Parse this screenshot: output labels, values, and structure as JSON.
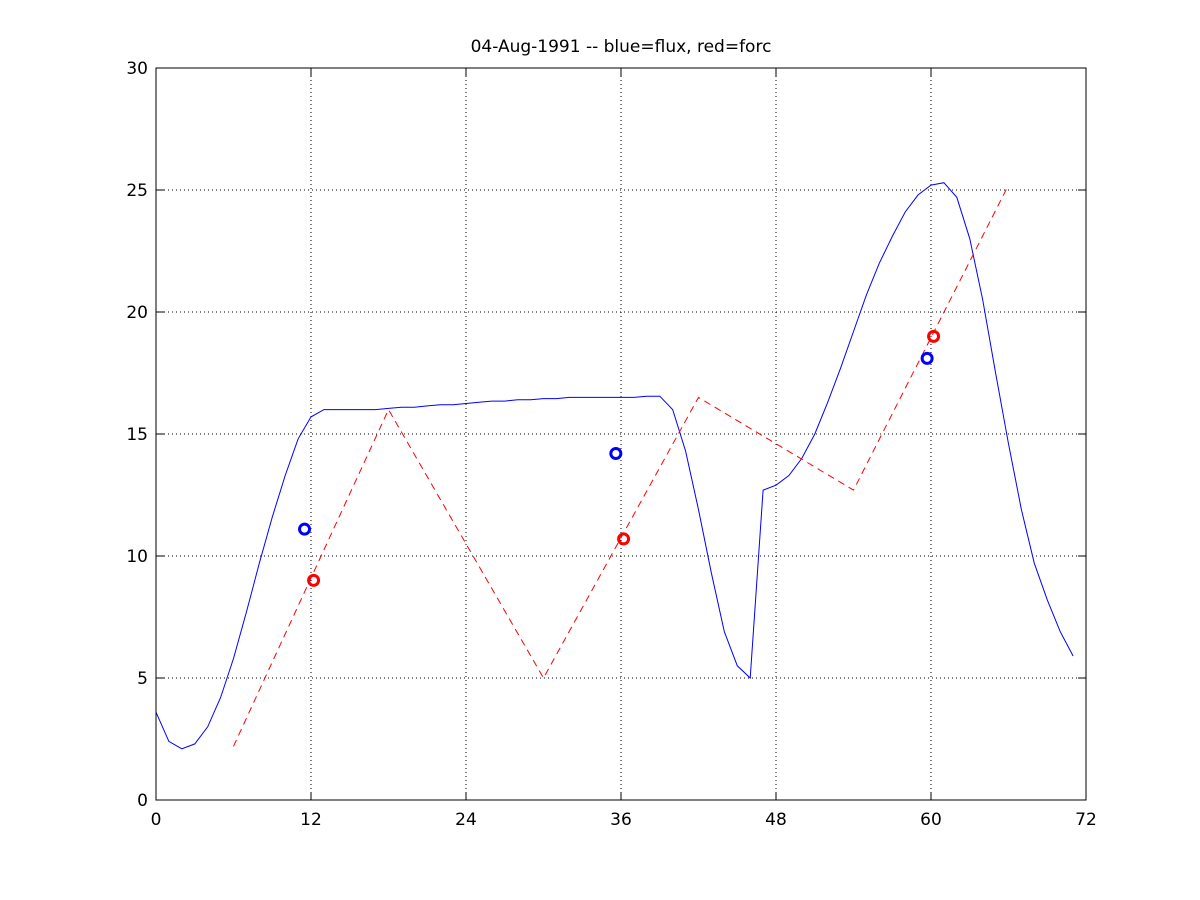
{
  "chart_data": {
    "type": "line",
    "title": "04-Aug-1991 -- blue=flux, red=forc",
    "xlabel": "",
    "ylabel": "",
    "xlim": [
      0,
      72
    ],
    "ylim": [
      0,
      30
    ],
    "xticks": [
      0,
      12,
      24,
      36,
      48,
      60,
      72
    ],
    "yticks": [
      0,
      5,
      10,
      15,
      20,
      25,
      30
    ],
    "xtick_labels": [
      "0",
      "12",
      "24",
      "36",
      "48",
      "60",
      "72"
    ],
    "ytick_labels": [
      "0",
      "5",
      "10",
      "15",
      "20",
      "25",
      "30"
    ],
    "grid": true,
    "series": [
      {
        "color": "#0000ff",
        "style": "solid",
        "x": [
          0,
          1,
          2,
          3,
          4,
          5,
          6,
          7,
          8,
          9,
          10,
          11,
          12,
          13,
          14,
          15,
          16,
          17,
          18,
          19,
          20,
          21,
          22,
          23,
          24,
          25,
          26,
          27,
          28,
          29,
          30,
          31,
          32,
          33,
          34,
          35,
          36,
          37,
          38,
          39,
          40,
          41,
          42,
          43,
          44,
          45,
          46,
          47,
          48,
          49,
          50,
          51,
          52,
          53,
          54,
          55,
          56,
          57,
          58,
          59,
          60,
          61,
          62,
          63,
          64,
          65,
          66,
          67,
          68,
          69,
          70,
          71
        ],
        "y": [
          3.6,
          2.4,
          2.1,
          2.3,
          3.0,
          4.2,
          5.8,
          7.7,
          9.7,
          11.6,
          13.3,
          14.8,
          15.7,
          16.0,
          16.0,
          16.0,
          16.0,
          16.0,
          16.05,
          16.1,
          16.1,
          16.15,
          16.2,
          16.2,
          16.25,
          16.3,
          16.35,
          16.35,
          16.4,
          16.4,
          16.45,
          16.45,
          16.5,
          16.5,
          16.5,
          16.5,
          16.5,
          16.5,
          16.55,
          16.55,
          16.0,
          14.3,
          11.9,
          9.3,
          6.9,
          5.5,
          5.0,
          12.7,
          12.9,
          13.3,
          14.0,
          15.0,
          16.3,
          17.7,
          19.2,
          20.7,
          22.0,
          23.1,
          24.1,
          24.8,
          25.2,
          25.3,
          24.7,
          23.0,
          20.5,
          17.5,
          14.6,
          11.9,
          9.7,
          8.2,
          6.9,
          5.9
        ],
        "trim_note": ""
      },
      {
        "color": "#ff0000",
        "style": "dashed",
        "x": [
          6,
          18,
          30,
          42,
          54,
          66
        ],
        "y": [
          2.2,
          16.0,
          5.0,
          16.5,
          12.7,
          25.2
        ]
      }
    ],
    "markers": [
      {
        "color": "#0000ff",
        "x": 11.5,
        "y": 11.1
      },
      {
        "color": "#ff0000",
        "x": 12.2,
        "y": 9.0
      },
      {
        "color": "#0000ff",
        "x": 35.6,
        "y": 14.2
      },
      {
        "color": "#ff0000",
        "x": 36.2,
        "y": 10.7
      },
      {
        "color": "#0000ff",
        "x": 59.7,
        "y": 18.1
      },
      {
        "color": "#ff0000",
        "x": 60.2,
        "y": 19.0
      }
    ]
  }
}
